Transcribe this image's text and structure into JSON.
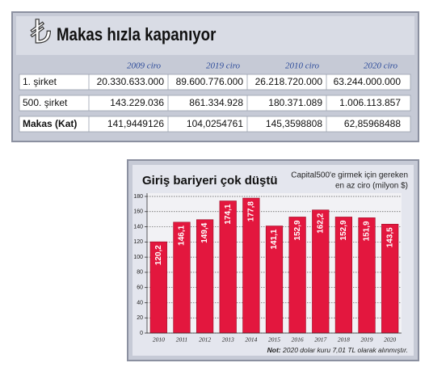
{
  "table": {
    "title": "Makas hızla kapanıyor",
    "columns": [
      "2009 ciro",
      "2019 ciro",
      "2010 ciro",
      "2020 ciro"
    ],
    "rows": [
      {
        "label": "1. şirket",
        "cells": [
          "20.330.633.000",
          "89.600.776.000",
          "26.218.720.000",
          "63.244.000.000"
        ]
      },
      {
        "label": "500. şirket",
        "cells": [
          "143.229.036",
          "861.334.928",
          "180.371.089",
          "1.006.113.857"
        ]
      },
      {
        "label": "Makas (Kat)",
        "cells": [
          "141,9449126",
          "104,0254761",
          "145,3598808",
          "62,85968488"
        ]
      }
    ]
  },
  "chart_data": {
    "type": "bar",
    "title": "Giriş bariyeri çok düştü",
    "subtitle": [
      "Capital500'e girmek için gereken",
      "en az ciro (milyon $)"
    ],
    "categories": [
      "2010",
      "2011",
      "2012",
      "2013",
      "2014",
      "2015",
      "2016",
      "2017",
      "2018",
      "2019",
      "2020"
    ],
    "values": [
      120.2,
      146.1,
      149.4,
      174.1,
      177.8,
      141.1,
      152.9,
      162.2,
      152.9,
      151.9,
      143.5
    ],
    "value_labels": [
      "120,2",
      "146,1",
      "149,4",
      "174,1",
      "177,8",
      "141,1",
      "152,9",
      "162,2",
      "152,9",
      "151,9",
      "143,5"
    ],
    "color": "#e3173e",
    "ylim": [
      0,
      180
    ],
    "yticks": [
      0,
      20,
      40,
      60,
      80,
      100,
      120,
      140,
      160,
      180
    ],
    "grid": true,
    "note_label": "Not:",
    "note": "2020 dolar kuru 7,01 TL olarak alınmıştır."
  }
}
